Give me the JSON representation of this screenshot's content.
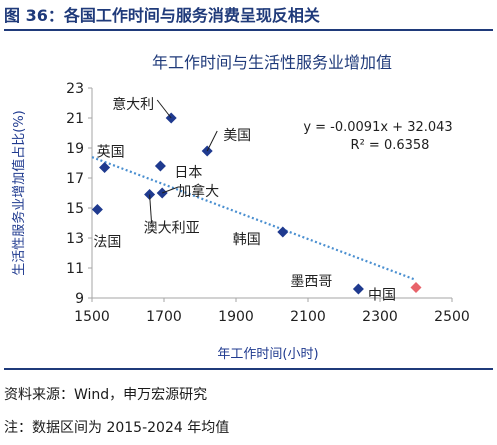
{
  "figure": {
    "caption": "图 36：各国工作时间与服务消费呈现反相关",
    "source": "资料来源：Wind，申万宏源研究",
    "note": "注：数据区间为 2015-2024 年均值"
  },
  "chart_data": {
    "type": "scatter",
    "title": "年工作时间与生活性服务业增加值",
    "xlabel": "年工作时间(小时)",
    "ylabel": "生活性服务业增加值占比(%)",
    "xlim": [
      1500,
      2500
    ],
    "ylim": [
      9,
      23
    ],
    "xticks": [
      1500,
      1700,
      1900,
      2100,
      2300,
      2500
    ],
    "yticks": [
      9,
      11,
      13,
      15,
      17,
      19,
      21,
      23
    ],
    "grid": false,
    "colors": {
      "points": "#1f3a8f",
      "highlight": "#e8636a",
      "trendline": "#4a8fd0",
      "title": "#1f3a7a"
    },
    "points": [
      {
        "label": "意大利",
        "x": 1720,
        "y": 21.0
      },
      {
        "label": "美国",
        "x": 1820,
        "y": 18.8
      },
      {
        "label": "日本",
        "x": 1690,
        "y": 17.8
      },
      {
        "label": "英国",
        "x": 1535,
        "y": 17.7
      },
      {
        "label": "加拿大",
        "x": 1695,
        "y": 16.0
      },
      {
        "label": "澳大利亚",
        "x": 1660,
        "y": 15.9
      },
      {
        "label": "法国",
        "x": 1515,
        "y": 14.9
      },
      {
        "label": "韩国",
        "x": 2030,
        "y": 13.4
      },
      {
        "label": "墨西哥",
        "x": 2240,
        "y": 9.6
      }
    ],
    "highlight_point": {
      "label": "中国",
      "x": 2400,
      "y": 9.7
    },
    "trendline": {
      "slope": -0.0091,
      "intercept": 32.043,
      "x_range": [
        1500,
        2400
      ],
      "equation": "y = -0.0091x + 32.043",
      "r2": "R² = 0.6358"
    }
  }
}
